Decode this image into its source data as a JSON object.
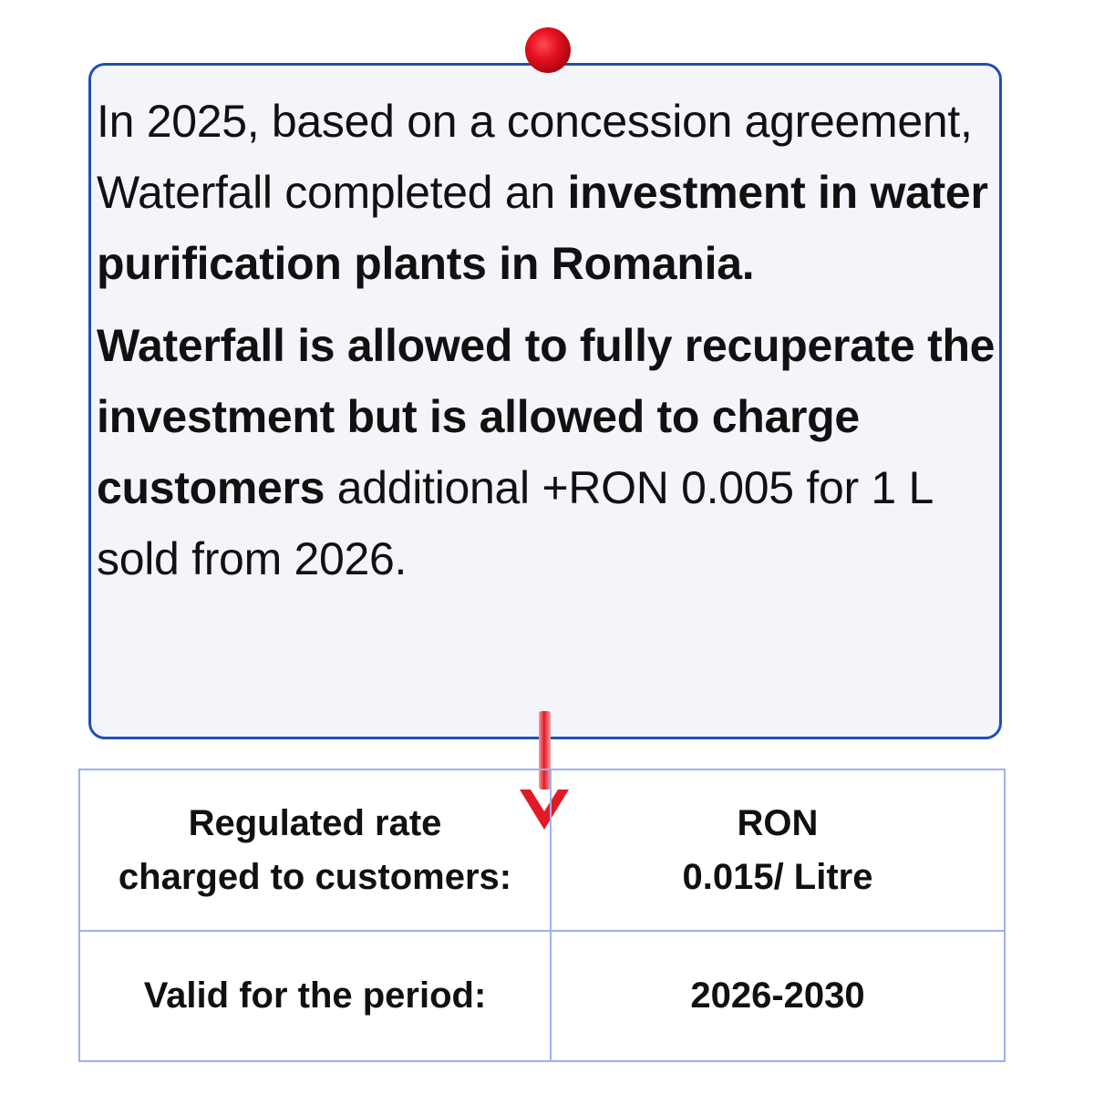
{
  "note": {
    "paragraph1": {
      "normal_text": "In 2025, based on a  concession agreement, Waterfall completed an",
      "bold_text": "investment in water purification plants in Romania."
    },
    "paragraph2": {
      "bold_text": "Waterfall is allowed to fully recuperate the investment but is allowed to charge customers",
      "normal_text": "additional +RON 0.005  for 1 L sold from 2026."
    }
  },
  "table": {
    "rows": [
      {
        "label_lines": [
          "Regulated rate",
          "charged to customers:"
        ],
        "value_lines": [
          "RON",
          "0.015/ Litre"
        ]
      },
      {
        "label_lines": [
          "Valid for the period:"
        ],
        "value_lines": [
          "2026-2030"
        ]
      }
    ]
  },
  "colors": {
    "card_border": "#1f4fb3",
    "card_background": "#f3f5fb",
    "table_border": "#9fb0ec",
    "pin": "#e3101e",
    "arrow": "#e01b26"
  },
  "icons": {
    "pin": "red-pushpin-icon",
    "arrow": "down-arrow-icon"
  }
}
